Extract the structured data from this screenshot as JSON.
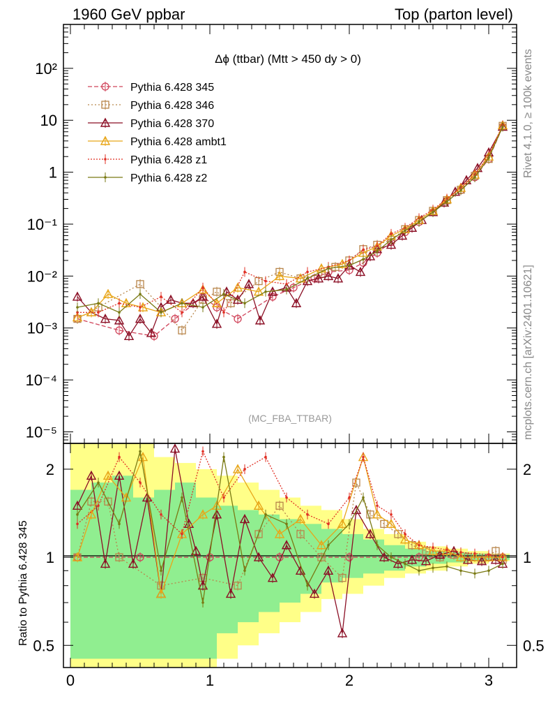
{
  "header": {
    "left": "1960 GeV ppbar",
    "right": "Top (parton level)"
  },
  "side_labels": {
    "rivet": "Rivet 4.1.0, ≥ 100k events",
    "mcplots": "mcplots.cern.ch [arXiv:2401.10621]"
  },
  "chart_data": [
    {
      "type": "line",
      "panel": "main",
      "title": "Δϕ (ttbar) (Mtt > 450 dy > 0)",
      "watermark": "(MC_FBA_TTBAR)",
      "xlabel": "",
      "ylabel": "",
      "yscale": "log",
      "xlim": [
        -0.05,
        3.2
      ],
      "ylim": [
        6e-06,
        700
      ],
      "xticks": [
        "0",
        "1",
        "2",
        "3"
      ],
      "yticks": [
        "10⁻⁵",
        "10⁻⁴",
        "10⁻³",
        "10⁻²",
        "10⁻¹",
        "1",
        "10",
        "10²"
      ],
      "series": [
        {
          "name": "Pythia 6.428 345",
          "color": "#d0445a",
          "marker": "circle-open",
          "dash": "6,3",
          "x": [
            0.05,
            0.35,
            0.6,
            0.75,
            0.95,
            1.05,
            1.2,
            1.45,
            1.6,
            1.75,
            1.85,
            2.0,
            2.1,
            2.2,
            2.3,
            2.4,
            2.5,
            2.6,
            2.7,
            2.8,
            2.9,
            3.0,
            3.1
          ],
          "y": [
            0.0015,
            0.0009,
            0.0007,
            0.0015,
            0.004,
            0.0025,
            0.0015,
            0.004,
            0.006,
            0.009,
            0.012,
            0.013,
            0.018,
            0.028,
            0.045,
            0.07,
            0.11,
            0.17,
            0.28,
            0.45,
            0.8,
            1.8,
            7.5
          ]
        },
        {
          "name": "Pythia 6.428 346",
          "color": "#b8864b",
          "marker": "square-open",
          "dash": "2,3",
          "x": [
            0.05,
            0.2,
            0.5,
            0.8,
            0.95,
            1.05,
            1.15,
            1.35,
            1.5,
            1.65,
            1.8,
            1.9,
            2.0,
            2.1,
            2.2,
            2.3,
            2.4,
            2.5,
            2.6,
            2.7,
            2.8,
            2.9,
            3.0,
            3.1
          ],
          "y": [
            0.0015,
            0.0025,
            0.007,
            0.0009,
            0.0035,
            0.005,
            0.003,
            0.008,
            0.012,
            0.009,
            0.011,
            0.015,
            0.02,
            0.033,
            0.04,
            0.05,
            0.08,
            0.12,
            0.18,
            0.29,
            0.46,
            0.85,
            1.8,
            7.8
          ]
        },
        {
          "name": "Pythia 6.428 370",
          "color": "#8b0f25",
          "marker": "triangle-open",
          "dash": "",
          "x": [
            0.05,
            0.15,
            0.25,
            0.35,
            0.42,
            0.5,
            0.58,
            0.65,
            0.72,
            0.8,
            0.88,
            0.95,
            1.05,
            1.12,
            1.2,
            1.28,
            1.36,
            1.45,
            1.55,
            1.62,
            1.7,
            1.78,
            1.85,
            1.92,
            2.0,
            2.08,
            2.15,
            2.2,
            2.3,
            2.38,
            2.45,
            2.52,
            2.6,
            2.68,
            2.76,
            2.84,
            2.92,
            3.0,
            3.1
          ],
          "y": [
            0.004,
            0.002,
            0.0015,
            0.0014,
            0.0007,
            0.0015,
            0.0008,
            0.0025,
            0.0035,
            0.003,
            0.003,
            0.004,
            0.0012,
            0.005,
            0.0035,
            0.007,
            0.0014,
            0.005,
            0.006,
            0.003,
            0.008,
            0.009,
            0.01,
            0.009,
            0.016,
            0.012,
            0.024,
            0.033,
            0.04,
            0.06,
            0.085,
            0.12,
            0.17,
            0.26,
            0.42,
            0.7,
            1.2,
            2.4,
            7.5
          ]
        },
        {
          "name": "Pythia 6.428 ambt1",
          "color": "#e8a619",
          "marker": "triangle-open",
          "dash": "",
          "x": [
            0.05,
            0.15,
            0.27,
            0.4,
            0.52,
            0.65,
            0.8,
            0.95,
            1.05,
            1.2,
            1.35,
            1.5,
            1.65,
            1.8,
            1.95,
            2.1,
            2.2,
            2.3,
            2.4,
            2.5,
            2.6,
            2.7,
            2.8,
            2.9,
            3.0,
            3.1
          ],
          "y": [
            0.0016,
            0.002,
            0.0045,
            0.003,
            0.0025,
            0.002,
            0.003,
            0.0055,
            0.003,
            0.006,
            0.005,
            0.01,
            0.009,
            0.014,
            0.017,
            0.028,
            0.037,
            0.06,
            0.08,
            0.12,
            0.18,
            0.3,
            0.5,
            0.9,
            2.0,
            8.0
          ]
        },
        {
          "name": "Pythia 6.428 z1",
          "color": "#e03025",
          "marker": "dot",
          "dash": "2,2",
          "x": [
            0.05,
            0.2,
            0.35,
            0.5,
            0.65,
            0.8,
            0.95,
            1.1,
            1.25,
            1.4,
            1.55,
            1.7,
            1.85,
            2.0,
            2.1,
            2.2,
            2.3,
            2.4,
            2.5,
            2.6,
            2.7,
            2.8,
            2.9,
            3.0,
            3.1
          ],
          "y": [
            0.002,
            0.002,
            0.003,
            0.0025,
            0.004,
            0.002,
            0.006,
            0.002,
            0.012,
            0.008,
            0.007,
            0.012,
            0.015,
            0.02,
            0.032,
            0.038,
            0.065,
            0.085,
            0.13,
            0.19,
            0.31,
            0.5,
            0.9,
            2.1,
            8.0
          ]
        },
        {
          "name": "Pythia 6.428 z2",
          "color": "#7a7a14",
          "marker": "dot",
          "dash": "",
          "x": [
            0.05,
            0.2,
            0.35,
            0.5,
            0.65,
            0.8,
            0.95,
            1.1,
            1.25,
            1.4,
            1.55,
            1.7,
            1.85,
            2.0,
            2.1,
            2.2,
            2.3,
            2.4,
            2.5,
            2.6,
            2.7,
            2.8,
            2.9,
            3.0,
            3.1
          ],
          "y": [
            0.0025,
            0.003,
            0.002,
            0.0045,
            0.002,
            0.003,
            0.0025,
            0.0045,
            0.003,
            0.005,
            0.0055,
            0.009,
            0.014,
            0.016,
            0.021,
            0.03,
            0.05,
            0.075,
            0.11,
            0.17,
            0.27,
            0.45,
            0.8,
            1.9,
            7.5
          ]
        }
      ]
    },
    {
      "type": "line",
      "panel": "ratio",
      "ylabel": "Ratio to Pythia 6.428 345",
      "yscale": "log",
      "xlim": [
        -0.05,
        3.2
      ],
      "ylim": [
        0.42,
        2.45
      ],
      "yticks": [
        "0.5",
        "1",
        "2"
      ],
      "xticks": [
        "0",
        "1",
        "2",
        "3"
      ],
      "bands": {
        "x_edges": [
          0.0,
          0.15,
          0.3,
          0.45,
          0.6,
          0.75,
          0.9,
          1.05,
          1.2,
          1.35,
          1.5,
          1.65,
          1.8,
          1.95,
          2.1,
          2.25,
          2.4,
          2.55,
          2.7,
          2.85,
          3.0,
          3.15
        ],
        "green_lo": [
          0.45,
          0.45,
          0.45,
          0.45,
          0.45,
          0.45,
          0.45,
          0.55,
          0.6,
          0.65,
          0.7,
          0.75,
          0.82,
          0.85,
          0.88,
          0.9,
          0.93,
          0.95,
          0.96,
          0.97,
          0.98
        ],
        "green_hi": [
          1.7,
          1.8,
          1.9,
          1.6,
          1.7,
          1.8,
          1.6,
          1.5,
          1.45,
          1.4,
          1.35,
          1.3,
          1.25,
          1.2,
          1.15,
          1.1,
          1.07,
          1.05,
          1.04,
          1.03,
          1.02
        ],
        "yellow_lo": [
          0.42,
          0.42,
          0.42,
          0.42,
          0.42,
          0.42,
          0.42,
          0.45,
          0.5,
          0.55,
          0.6,
          0.65,
          0.72,
          0.75,
          0.8,
          0.85,
          0.88,
          0.9,
          0.93,
          0.95,
          0.97
        ],
        "yellow_hi": [
          2.45,
          2.45,
          2.45,
          2.45,
          2.2,
          2.1,
          2.0,
          1.9,
          1.8,
          1.7,
          1.6,
          1.5,
          1.45,
          1.35,
          1.25,
          1.2,
          1.13,
          1.09,
          1.07,
          1.05,
          1.03
        ]
      },
      "series": [
        {
          "name": "Pythia 6.428 345",
          "color": "#d0445a",
          "marker": "circle-open",
          "dash": "6,3",
          "x": [
            0.05,
            0.5,
            1.0,
            1.5,
            2.0,
            2.5,
            3.0,
            3.1
          ],
          "y": [
            1.0,
            1.0,
            1.0,
            1.0,
            1.0,
            1.0,
            1.0,
            1.0
          ]
        },
        {
          "name": "Pythia 6.428 346",
          "color": "#b8864b",
          "marker": "square-open",
          "dash": "2,3",
          "x": [
            0.05,
            0.15,
            0.27,
            0.35,
            0.65,
            0.95,
            1.2,
            1.35,
            1.5,
            1.65,
            1.8,
            1.95,
            2.05,
            2.15,
            2.25,
            2.35,
            2.45,
            2.55,
            2.65,
            2.75,
            2.85,
            2.95,
            3.05,
            3.1
          ],
          "y": [
            1.0,
            1.55,
            1.55,
            1.0,
            0.8,
            0.85,
            0.8,
            1.2,
            1.5,
            1.2,
            1.0,
            0.85,
            1.8,
            1.4,
            1.3,
            1.2,
            1.1,
            1.05,
            1.0,
            1.02,
            1.0,
            0.98,
            1.05,
            0.98
          ]
        },
        {
          "name": "Pythia 6.428 370",
          "color": "#8b0f25",
          "marker": "triangle-open",
          "dash": "",
          "x": [
            0.05,
            0.15,
            0.25,
            0.35,
            0.45,
            0.55,
            0.65,
            0.75,
            0.85,
            0.9,
            0.95,
            1.05,
            1.15,
            1.25,
            1.35,
            1.45,
            1.55,
            1.65,
            1.75,
            1.85,
            1.95,
            2.05,
            2.15,
            2.25,
            2.35,
            2.45,
            2.55,
            2.65,
            2.75,
            2.85,
            2.95,
            3.05,
            3.1
          ],
          "y": [
            1.5,
            1.9,
            0.95,
            1.9,
            0.95,
            1.6,
            0.75,
            2.35,
            1.3,
            1.05,
            0.8,
            1.4,
            0.75,
            1.35,
            1.0,
            0.85,
            1.1,
            0.9,
            0.75,
            0.9,
            0.55,
            1.45,
            1.2,
            1.0,
            0.95,
            0.98,
            0.97,
            1.02,
            1.05,
            0.98,
            0.97,
            0.98,
            0.95
          ]
        },
        {
          "name": "Pythia 6.428 ambt1",
          "color": "#e8a619",
          "marker": "triangle-open",
          "dash": "",
          "x": [
            0.05,
            0.15,
            0.27,
            0.4,
            0.52,
            0.65,
            0.8,
            0.95,
            1.05,
            1.2,
            1.35,
            1.5,
            1.65,
            1.8,
            1.95,
            2.1,
            2.2,
            2.3,
            2.4,
            2.5,
            2.6,
            2.7,
            2.8,
            2.9,
            3.0,
            3.1
          ],
          "y": [
            1.0,
            1.4,
            1.9,
            1.6,
            2.2,
            0.75,
            1.2,
            1.4,
            1.5,
            2.0,
            1.5,
            1.2,
            1.35,
            1.1,
            1.3,
            2.2,
            1.4,
            1.3,
            1.15,
            1.1,
            1.05,
            1.05,
            1.0,
            1.0,
            1.0,
            1.0
          ]
        },
        {
          "name": "Pythia 6.428 z1",
          "color": "#e03025",
          "marker": "dot",
          "dash": "2,2",
          "x": [
            0.05,
            0.2,
            0.35,
            0.5,
            0.65,
            0.8,
            0.95,
            1.1,
            1.25,
            1.4,
            1.55,
            1.7,
            1.85,
            2.0,
            2.1,
            2.2,
            2.3,
            2.4,
            2.5,
            2.6,
            2.7,
            2.8,
            2.9,
            3.0,
            3.1
          ],
          "y": [
            1.3,
            1.5,
            2.2,
            1.8,
            1.4,
            1.2,
            2.3,
            1.6,
            2.0,
            2.2,
            1.6,
            1.4,
            1.3,
            1.6,
            2.2,
            1.5,
            1.4,
            1.2,
            1.1,
            1.08,
            1.06,
            1.04,
            1.03,
            1.02,
            1.0
          ]
        },
        {
          "name": "Pythia 6.428 z2",
          "color": "#7a7a14",
          "marker": "dot",
          "dash": "",
          "x": [
            0.05,
            0.2,
            0.35,
            0.5,
            0.65,
            0.8,
            0.95,
            1.1,
            1.25,
            1.4,
            1.55,
            1.7,
            1.85,
            2.0,
            2.1,
            2.2,
            2.3,
            2.4,
            2.5,
            2.6,
            2.7,
            2.8,
            2.9,
            3.0,
            3.1
          ],
          "y": [
            1.4,
            1.8,
            1.3,
            2.3,
            0.9,
            1.6,
            0.7,
            2.2,
            0.9,
            1.4,
            1.3,
            0.8,
            1.1,
            1.3,
            1.6,
            1.1,
            1.0,
            0.95,
            0.9,
            0.92,
            0.93,
            0.9,
            0.88,
            0.9,
            0.95
          ]
        }
      ]
    }
  ]
}
